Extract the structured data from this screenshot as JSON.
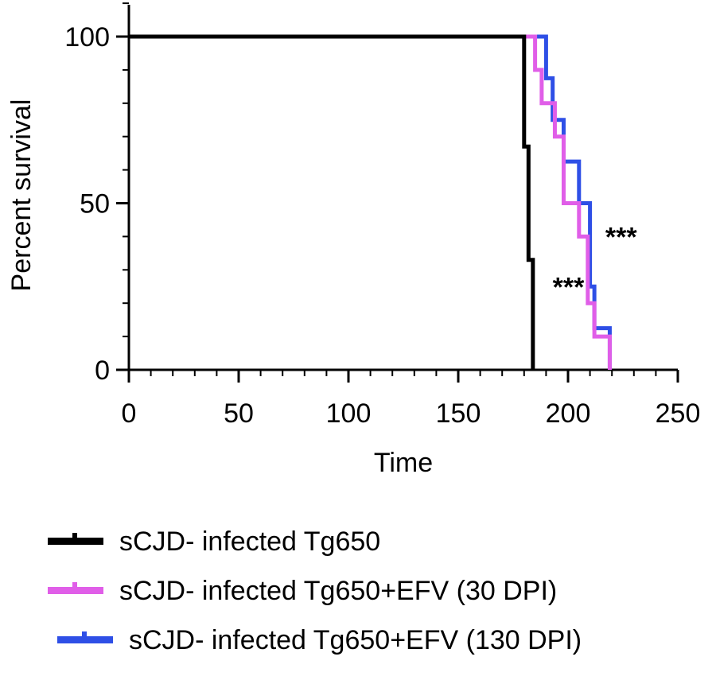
{
  "chart_data": {
    "type": "line",
    "subtype": "kaplan-meier survival step plot",
    "xlabel": "Time",
    "ylabel": "Percent survival",
    "xlim": [
      0,
      250
    ],
    "ylim": [
      0,
      100
    ],
    "xticks": [
      0,
      50,
      100,
      150,
      200,
      250
    ],
    "yticks": [
      0,
      50,
      100
    ],
    "x_minor_step": 10,
    "y_minor_step": 10,
    "grid": false,
    "legend_position": "bottom",
    "series": [
      {
        "name": "sCJD- infected Tg650",
        "color": "#000000",
        "x": [
          0,
          180,
          182,
          184
        ],
        "y": [
          100,
          67,
          33,
          0
        ]
      },
      {
        "name": "sCJD- infected Tg650+EFV (30 DPI)",
        "color": "#e05ee8",
        "x": [
          0,
          185,
          188,
          194,
          198,
          205,
          209,
          212,
          219
        ],
        "y": [
          100,
          90,
          80,
          70,
          50,
          40,
          20,
          10,
          0
        ]
      },
      {
        "name": "sCJD- infected Tg650+EFV (130 DPI)",
        "color": "#2e4fe6",
        "x": [
          0,
          190,
          193,
          198,
          205,
          210,
          212,
          219
        ],
        "y": [
          100,
          87.5,
          75,
          62.5,
          50,
          25,
          12.5,
          0
        ]
      }
    ],
    "annotations": [
      {
        "text": "***",
        "x": 217,
        "y": 40
      },
      {
        "text": "***",
        "x": 193,
        "y": 25
      }
    ]
  }
}
